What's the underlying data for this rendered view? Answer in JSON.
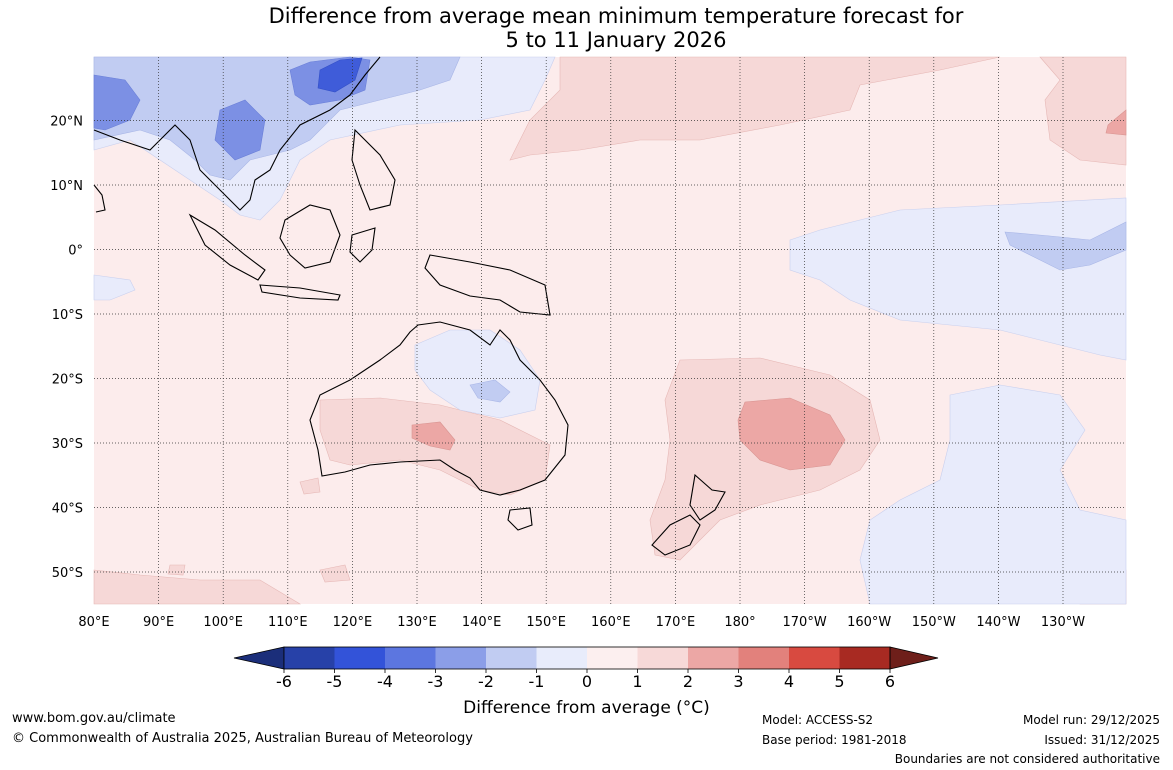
{
  "title": {
    "line1": "Difference from average mean minimum temperature forecast for",
    "line2": "5 to 11 January 2026"
  },
  "map": {
    "lon_labels": [
      "80°E",
      "90°E",
      "100°E",
      "110°E",
      "120°E",
      "130°E",
      "140°E",
      "150°E",
      "160°E",
      "170°E",
      "180°",
      "170°W",
      "160°W",
      "150°W",
      "140°W",
      "130°W"
    ],
    "lat_labels": [
      "20°N",
      "10°N",
      "0°",
      "10°S",
      "20°S",
      "30°S",
      "40°S",
      "50°S"
    ]
  },
  "legend": {
    "ticks": [
      "-6",
      "-5",
      "-4",
      "-3",
      "-2",
      "-1",
      "0",
      "1",
      "2",
      "3",
      "4",
      "5",
      "6"
    ],
    "colors": [
      "#1b2e7a",
      "#2741a8",
      "#3353d9",
      "#5c76e0",
      "#8b9ee8",
      "#c1ccf2",
      "#e8ecfb",
      "#fcefef",
      "#f7d9d8",
      "#eca7a5",
      "#e2817c",
      "#d84a40",
      "#a82a22",
      "#6e1f1a"
    ],
    "title": "Difference from average (°C)"
  },
  "footer": {
    "url": "www.bom.gov.au/climate",
    "copyright": "© Commonwealth of Australia 2025, Australian Bureau of Meteorology",
    "model": "Model: ACCESS-S2",
    "base_period": "Base period: 1981-2018",
    "model_run": "Model run: 29/12/2025",
    "issued": "Issued: 31/12/2025",
    "disclaimer": "Boundaries are not considered authoritative"
  }
}
